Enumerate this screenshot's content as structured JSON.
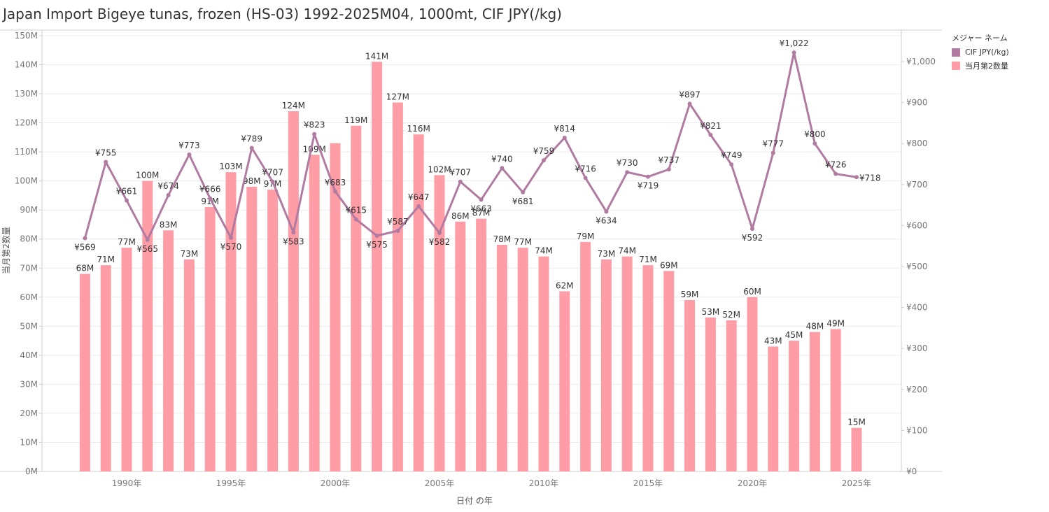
{
  "title": "Japan Import Bigeye tunas, frozen (HS-03) 1992-2025M04, 1000mt, CIF JPY(/kg)",
  "colors": {
    "bar": "#ff9da7",
    "line": "#b07aa1",
    "grid": "#ececec",
    "axis": "#cfcfcf"
  },
  "legend": {
    "title": "メジャー ネーム",
    "items": [
      {
        "label": "CIF JPY(/kg)",
        "color": "#b07aa1"
      },
      {
        "label": "当月第2数量",
        "color": "#ff9da7"
      }
    ]
  },
  "chart_data": {
    "type": "bar",
    "title": "Japan Import Bigeye tunas, frozen (HS-03) 1992-2025M04, 1000mt, CIF JPY(/kg)",
    "xlabel": "日付 の年",
    "ylabel": "当月第2数量",
    "x": [
      1988,
      1989,
      1990,
      1991,
      1992,
      1993,
      1994,
      1995,
      1996,
      1997,
      1998,
      1999,
      2000,
      2001,
      2002,
      2003,
      2004,
      2005,
      2006,
      2007,
      2008,
      2009,
      2010,
      2011,
      2012,
      2013,
      2014,
      2015,
      2016,
      2017,
      2018,
      2019,
      2020,
      2021,
      2022,
      2023,
      2024,
      2025
    ],
    "x_ticks": [
      1990,
      1995,
      2000,
      2005,
      2010,
      2015,
      2020,
      2025
    ],
    "x_tick_suffix": "年",
    "series": [
      {
        "name": "当月第2数量",
        "kind": "bar",
        "axis": "left",
        "values": [
          68,
          71,
          77,
          100,
          83,
          73,
          91,
          103,
          98,
          97,
          124,
          109,
          113,
          119,
          141,
          127,
          116,
          102,
          86,
          87,
          78,
          77,
          74,
          62,
          79,
          73,
          74,
          71,
          69,
          59,
          53,
          52,
          60,
          43,
          45,
          48,
          49,
          15
        ],
        "labels": [
          "68M",
          "71M",
          "77M",
          "100M",
          "83M",
          "73M",
          "91M",
          "103M",
          "98M",
          "97M",
          "124M",
          "109M",
          "",
          "119M",
          "141M",
          "127M",
          "116M",
          "102M",
          "86M",
          "87M",
          "78M",
          "77M",
          "74M",
          "62M",
          "79M",
          "73M",
          "74M",
          "71M",
          "69M",
          "59M",
          "53M",
          "52M",
          "60M",
          "43M",
          "45M",
          "48M",
          "49M",
          "15M"
        ]
      },
      {
        "name": "CIF JPY(/kg)",
        "kind": "line",
        "axis": "right",
        "values": [
          569,
          755,
          661,
          565,
          674,
          773,
          666,
          570,
          789,
          707,
          583,
          823,
          683,
          615,
          575,
          587,
          647,
          582,
          707,
          663,
          740,
          681,
          759,
          814,
          716,
          634,
          730,
          719,
          737,
          897,
          821,
          749,
          592,
          777,
          1022,
          800,
          726,
          718
        ],
        "labels": [
          "¥569",
          "¥755",
          "¥661",
          "¥565",
          "¥674",
          "¥773",
          "¥666",
          "¥570",
          "¥789",
          "¥707",
          "¥583",
          "¥823",
          "¥683",
          "¥615",
          "¥575",
          "¥587",
          "¥647",
          "¥582",
          "¥707",
          "¥663",
          "¥740",
          "¥681",
          "¥759",
          "¥814",
          "¥716",
          "¥634",
          "¥730",
          "¥719",
          "¥737",
          "¥897",
          "¥821",
          "¥749",
          "¥592",
          "¥777",
          "¥1,022",
          "¥800",
          "¥726",
          "¥718"
        ]
      }
    ],
    "left_axis": {
      "ylim": [
        0,
        150
      ],
      "ticks": [
        0,
        10,
        20,
        30,
        40,
        50,
        60,
        70,
        80,
        90,
        100,
        110,
        120,
        130,
        140,
        150
      ],
      "tick_suffix": "M"
    },
    "right_axis": {
      "ylim": [
        0,
        1050
      ],
      "ticks": [
        0,
        100,
        200,
        300,
        400,
        500,
        600,
        700,
        800,
        900,
        1000
      ],
      "tick_labels": [
        "¥0",
        "¥100",
        "¥200",
        "¥300",
        "¥400",
        "¥500",
        "¥600",
        "¥700",
        "¥800",
        "¥900",
        "¥1,000"
      ]
    },
    "grid": true,
    "legend_position": "top-right"
  }
}
